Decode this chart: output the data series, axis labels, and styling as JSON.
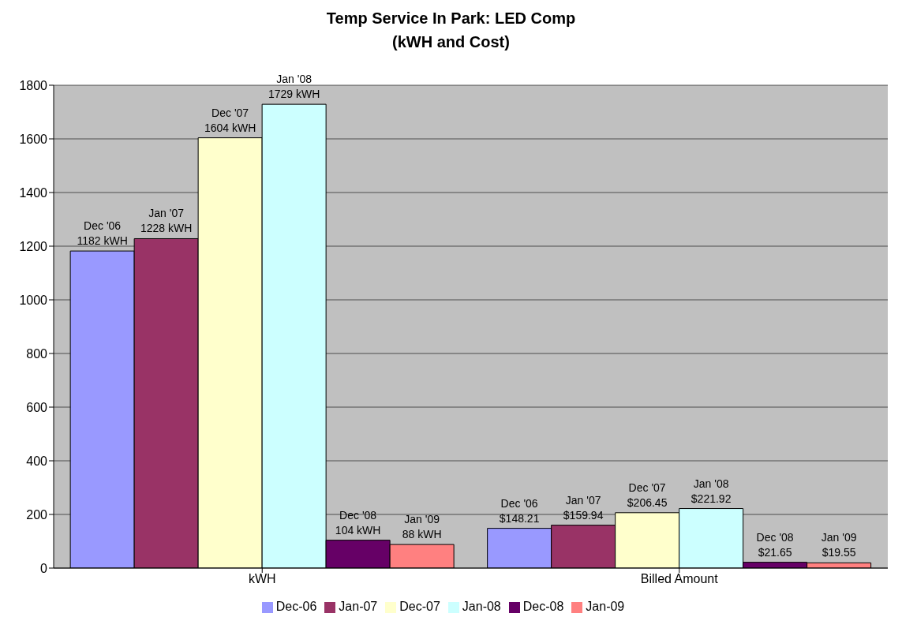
{
  "chart_data": {
    "type": "bar",
    "title": "Temp Service In Park: LED Comp\n(kWH and Cost)",
    "categories": [
      "kWH",
      "Billed Amount"
    ],
    "series": [
      {
        "name": "Dec-06",
        "color": "#9999ff",
        "values": [
          1182,
          148.21
        ],
        "value_labels": [
          "Dec '06\n1182 kWH",
          "Dec '06\n$148.21"
        ]
      },
      {
        "name": "Jan-07",
        "color": "#993366",
        "values": [
          1228,
          159.94
        ],
        "value_labels": [
          "Jan '07\n1228 kWH",
          "Jan '07\n$159.94"
        ]
      },
      {
        "name": "Dec-07",
        "color": "#ffffcc",
        "values": [
          1604,
          206.45
        ],
        "value_labels": [
          "Dec '07\n1604 kWH",
          "Dec '07\n$206.45"
        ]
      },
      {
        "name": "Jan-08",
        "color": "#ccffff",
        "values": [
          1729,
          221.92
        ],
        "value_labels": [
          "Jan '08\n1729 kWH",
          "Jan '08\n$221.92"
        ]
      },
      {
        "name": "Dec-08",
        "color": "#660066",
        "values": [
          104,
          21.65
        ],
        "value_labels": [
          "Dec '08\n104 kWH",
          "Dec '08\n$21.65"
        ]
      },
      {
        "name": "Jan-09",
        "color": "#ff8080",
        "values": [
          88,
          19.55
        ],
        "value_labels": [
          "Jan '09\n88 kWH",
          "Jan '09\n$19.55"
        ]
      }
    ],
    "ylim": [
      0,
      1800
    ],
    "yticks": [
      0,
      200,
      400,
      600,
      800,
      1000,
      1200,
      1400,
      1600,
      1800
    ],
    "grid": "y",
    "legend": "bottom"
  }
}
